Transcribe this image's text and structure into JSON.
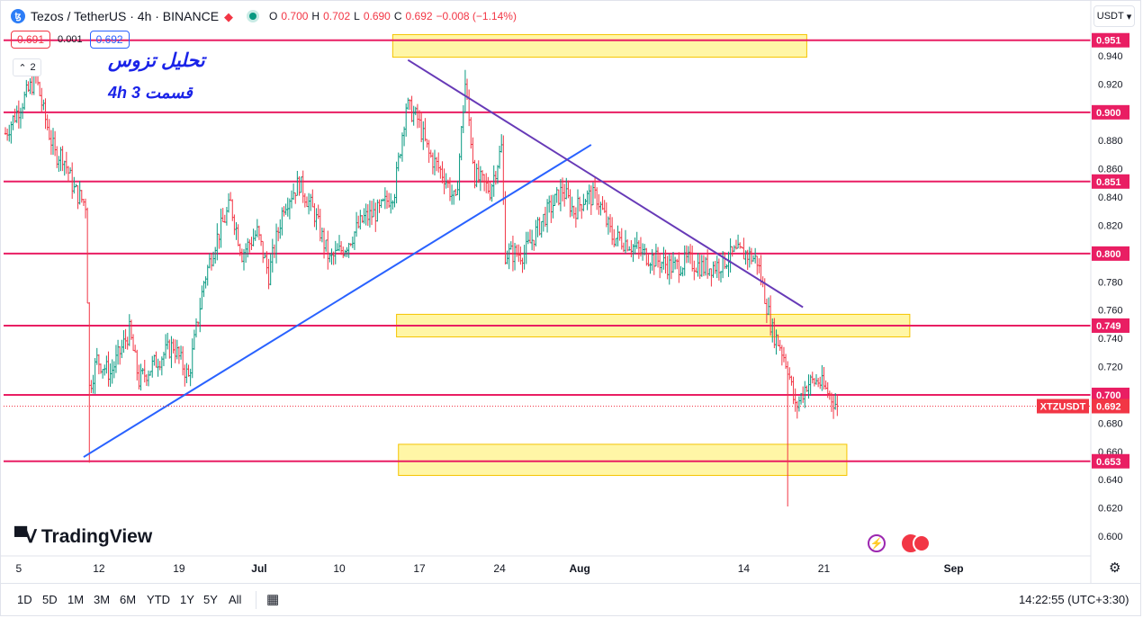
{
  "header": {
    "symbol": "Tezos / TetherUS · 4h · BINANCE",
    "logo_glyph": "ꜩ",
    "ohlc": [
      {
        "k": "O",
        "v": "0.700"
      },
      {
        "k": "H",
        "v": "0.702"
      },
      {
        "k": "L",
        "v": "0.690"
      },
      {
        "k": "C",
        "v": "0.692"
      },
      {
        "k": "",
        "v": "−0.008 (−1.14%)"
      }
    ],
    "bid": "0.691",
    "spread": "0.001",
    "ask": "0.692",
    "indicator_count": "2",
    "currency": "USDT"
  },
  "annotations": {
    "title_fa": "تحلیل تزوس",
    "subtitle": "4h  قسمت 3"
  },
  "branding": {
    "name": "TradingView"
  },
  "bottom_toolbar": {
    "timeframes": [
      "1D",
      "5D",
      "1M",
      "3M",
      "6M",
      "YTD",
      "1Y",
      "5Y",
      "All"
    ],
    "clock": "14:22:55 (UTC+3:30)"
  },
  "colors": {
    "up": "#089981",
    "down": "#f23645",
    "level_line": "#e91e63",
    "support_trend": "#2962ff",
    "resistance_trend": "#673ab7",
    "zone_fill": "#fff176",
    "label_bg": "#e91e63"
  },
  "chart_data": {
    "type": "candlestick",
    "symbol": "XTZUSDT",
    "timeframe": "4h",
    "y_ticks": [
      0.6,
      0.62,
      0.64,
      0.66,
      0.68,
      0.7,
      0.72,
      0.74,
      0.76,
      0.78,
      0.8,
      0.82,
      0.84,
      0.86,
      0.88,
      0.9,
      0.92,
      0.94
    ],
    "ylim": [
      0.59,
      0.96
    ],
    "x_ticks": [
      {
        "label": "5",
        "i": 7
      },
      {
        "label": "12",
        "i": 49
      },
      {
        "label": "19",
        "i": 91
      },
      {
        "label": "Jul",
        "i": 133
      },
      {
        "label": "10",
        "i": 175
      },
      {
        "label": "17",
        "i": 217
      },
      {
        "label": "24",
        "i": 259
      },
      {
        "label": "Aug",
        "i": 301
      },
      {
        "label": "14",
        "i": 387
      },
      {
        "label": "21",
        "i": 429
      },
      {
        "label": "Sep",
        "i": 497
      }
    ],
    "last_price": 0.692,
    "last_price_label": "XTZUSDT",
    "horizontal_levels": [
      {
        "value": 0.951,
        "label": "0.951"
      },
      {
        "value": 0.9,
        "label": "0.900"
      },
      {
        "value": 0.851,
        "label": "0.851"
      },
      {
        "value": 0.8,
        "label": "0.800"
      },
      {
        "value": 0.749,
        "label": "0.749"
      },
      {
        "value": 0.7,
        "label": "0.700"
      },
      {
        "value": 0.653,
        "label": "0.653"
      }
    ],
    "zones": [
      {
        "i_start": 203,
        "i_end": 420,
        "high": 0.955,
        "low": 0.939
      },
      {
        "i_start": 205,
        "i_end": 474,
        "high": 0.757,
        "low": 0.741
      },
      {
        "i_start": 206,
        "i_end": 441,
        "high": 0.665,
        "low": 0.643
      }
    ],
    "trendlines": [
      {
        "name": "support",
        "i1": 41,
        "v1": 0.656,
        "i2": 307,
        "v2": 0.877
      },
      {
        "name": "resistance",
        "i1": 211,
        "v1": 0.937,
        "i2": 418,
        "v2": 0.762
      }
    ],
    "price_path": [
      [
        0,
        0.885
      ],
      [
        8,
        0.905
      ],
      [
        16,
        0.925
      ],
      [
        20,
        0.9
      ],
      [
        26,
        0.87
      ],
      [
        30,
        0.87
      ],
      [
        36,
        0.845
      ],
      [
        42,
        0.835
      ],
      [
        44,
        0.705
      ],
      [
        48,
        0.725
      ],
      [
        55,
        0.715
      ],
      [
        65,
        0.745
      ],
      [
        70,
        0.71
      ],
      [
        80,
        0.725
      ],
      [
        88,
        0.735
      ],
      [
        96,
        0.712
      ],
      [
        104,
        0.78
      ],
      [
        110,
        0.808
      ],
      [
        118,
        0.835
      ],
      [
        124,
        0.8
      ],
      [
        132,
        0.815
      ],
      [
        138,
        0.785
      ],
      [
        146,
        0.835
      ],
      [
        154,
        0.85
      ],
      [
        162,
        0.828
      ],
      [
        170,
        0.795
      ],
      [
        178,
        0.805
      ],
      [
        188,
        0.825
      ],
      [
        196,
        0.83
      ],
      [
        204,
        0.845
      ],
      [
        210,
        0.905
      ],
      [
        216,
        0.895
      ],
      [
        222,
        0.87
      ],
      [
        230,
        0.855
      ],
      [
        236,
        0.835
      ],
      [
        241,
        0.92
      ],
      [
        246,
        0.855
      ],
      [
        254,
        0.845
      ],
      [
        260,
        0.875
      ],
      [
        262,
        0.8
      ],
      [
        272,
        0.8
      ],
      [
        282,
        0.825
      ],
      [
        292,
        0.845
      ],
      [
        298,
        0.83
      ],
      [
        304,
        0.84
      ],
      [
        310,
        0.84
      ],
      [
        318,
        0.812
      ],
      [
        326,
        0.808
      ],
      [
        334,
        0.8
      ],
      [
        342,
        0.795
      ],
      [
        350,
        0.79
      ],
      [
        358,
        0.795
      ],
      [
        366,
        0.79
      ],
      [
        374,
        0.792
      ],
      [
        382,
        0.8
      ],
      [
        388,
        0.8
      ],
      [
        394,
        0.795
      ],
      [
        398,
        0.77
      ],
      [
        402,
        0.745
      ],
      [
        406,
        0.735
      ],
      [
        410,
        0.72
      ],
      [
        414,
        0.69
      ],
      [
        420,
        0.708
      ],
      [
        426,
        0.71
      ],
      [
        432,
        0.7
      ],
      [
        436,
        0.692
      ]
    ]
  }
}
